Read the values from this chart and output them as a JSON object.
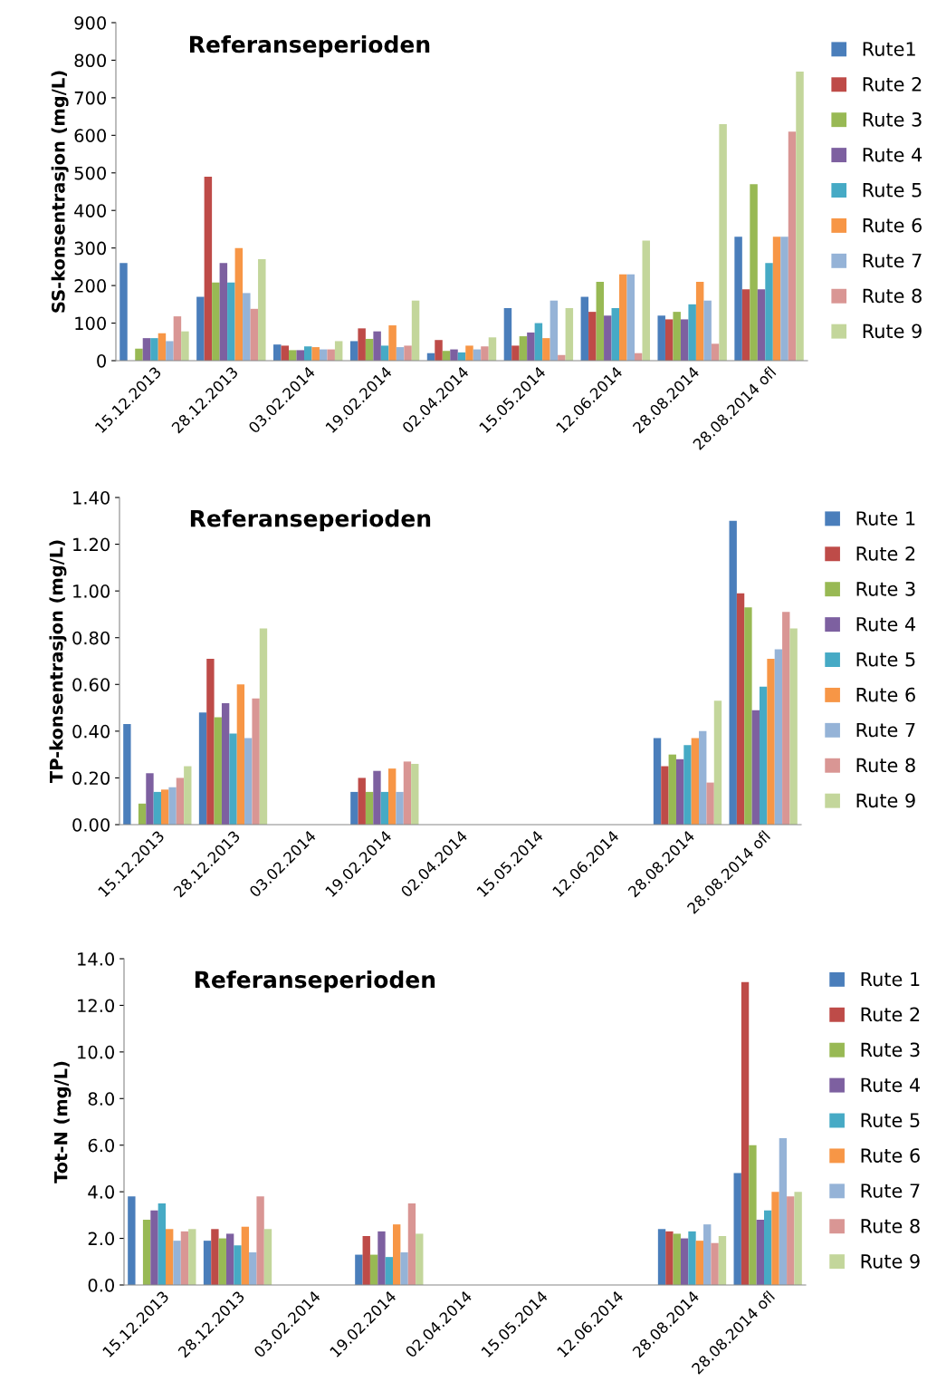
{
  "chart_data": [
    {
      "type": "bar",
      "title": "Referanseperioden",
      "ylabel": "SS-konsentrasjon (mg/L)",
      "categories": [
        "15.12.2013",
        "28.12.2013",
        "03.02.2014",
        "19.02.2014",
        "02.04.2014",
        "15.05.2014",
        "12.06.2014",
        "28.08.2014",
        "28.08.2014 ofl"
      ],
      "ylim": [
        0,
        900
      ],
      "yticks": [
        0,
        100,
        200,
        300,
        400,
        500,
        600,
        700,
        800,
        900
      ],
      "grid": false,
      "legend": "right",
      "series": [
        {
          "name": "Rute1",
          "color": "#4a7ebb",
          "values": [
            260,
            170,
            43,
            52,
            20,
            140,
            170,
            120,
            330
          ]
        },
        {
          "name": "Rute 2",
          "color": "#be4b48",
          "values": [
            null,
            490,
            40,
            86,
            55,
            40,
            130,
            110,
            190
          ]
        },
        {
          "name": "Rute 3",
          "color": "#98b954",
          "values": [
            32,
            208,
            28,
            58,
            26,
            65,
            210,
            130,
            470
          ]
        },
        {
          "name": "Rute 4",
          "color": "#7d60a0",
          "values": [
            60,
            260,
            28,
            78,
            30,
            75,
            120,
            110,
            190
          ]
        },
        {
          "name": "Rute 5",
          "color": "#46aac5",
          "values": [
            60,
            208,
            38,
            40,
            22,
            100,
            140,
            150,
            260
          ]
        },
        {
          "name": "Rute 6",
          "color": "#f79646",
          "values": [
            73,
            300,
            36,
            94,
            40,
            60,
            230,
            210,
            330
          ]
        },
        {
          "name": "Rute 7",
          "color": "#95b3d7",
          "values": [
            52,
            180,
            30,
            36,
            30,
            160,
            230,
            160,
            330
          ]
        },
        {
          "name": "Rute 8",
          "color": "#d99694",
          "values": [
            118,
            138,
            30,
            40,
            38,
            15,
            20,
            45,
            610
          ]
        },
        {
          "name": "Rute 9",
          "color": "#c3d69b",
          "values": [
            78,
            270,
            52,
            160,
            62,
            140,
            320,
            630,
            770
          ]
        }
      ]
    },
    {
      "type": "bar",
      "title": "Referanseperioden",
      "ylabel": "TP-konsentrasjon (mg/L)",
      "categories": [
        "15.12.2013",
        "28.12.2013",
        "03.02.2014",
        "19.02.2014",
        "02.04.2014",
        "15.05.2014",
        "12.06.2014",
        "28.08.2014",
        "28.08.2014 ofl"
      ],
      "ylim": [
        0,
        1.4
      ],
      "yticks": [
        {
          "value": 0,
          "label": "0.00"
        },
        {
          "value": 0.2,
          "label": "0.20"
        },
        {
          "value": 0.4,
          "label": "0.40"
        },
        {
          "value": 0.6,
          "label": "0.60"
        },
        {
          "value": 0.8,
          "label": "0.80"
        },
        {
          "value": 1.0,
          "label": "1.00"
        },
        {
          "value": 1.2,
          "label": "1.20"
        },
        {
          "value": 1.4,
          "label": "1.40"
        }
      ],
      "grid": false,
      "legend": "right",
      "series": [
        {
          "name": "Rute 1",
          "color": "#4a7ebb",
          "values": [
            0.43,
            0.48,
            null,
            0.14,
            null,
            null,
            null,
            0.37,
            1.3
          ]
        },
        {
          "name": "Rute 2",
          "color": "#be4b48",
          "values": [
            null,
            0.71,
            null,
            0.2,
            null,
            null,
            null,
            0.25,
            0.99
          ]
        },
        {
          "name": "Rute 3",
          "color": "#98b954",
          "values": [
            0.09,
            0.46,
            null,
            0.14,
            null,
            null,
            null,
            0.3,
            0.93
          ]
        },
        {
          "name": "Rute 4",
          "color": "#7d60a0",
          "values": [
            0.22,
            0.52,
            null,
            0.23,
            null,
            null,
            null,
            0.28,
            0.49
          ]
        },
        {
          "name": "Rute 5",
          "color": "#46aac5",
          "values": [
            0.14,
            0.39,
            null,
            0.14,
            null,
            null,
            null,
            0.34,
            0.59
          ]
        },
        {
          "name": "Rute 6",
          "color": "#f79646",
          "values": [
            0.15,
            0.6,
            null,
            0.24,
            null,
            null,
            null,
            0.37,
            0.71
          ]
        },
        {
          "name": "Rute 7",
          "color": "#95b3d7",
          "values": [
            0.16,
            0.37,
            null,
            0.14,
            null,
            null,
            null,
            0.4,
            0.75
          ]
        },
        {
          "name": "Rute 8",
          "color": "#d99694",
          "values": [
            0.2,
            0.54,
            null,
            0.27,
            null,
            null,
            null,
            0.18,
            0.91
          ]
        },
        {
          "name": "Rute 9",
          "color": "#c3d69b",
          "values": [
            0.25,
            0.84,
            null,
            0.26,
            null,
            null,
            null,
            0.53,
            0.84
          ]
        }
      ]
    },
    {
      "type": "bar",
      "title": "Referanseperioden",
      "ylabel": "Tot-N (mg/L)",
      "categories": [
        "15.12.2013",
        "28.12.2013",
        "03.02.2014",
        "19.02.2014",
        "02.04.2014",
        "15.05.2014",
        "12.06.2014",
        "28.08.2014",
        "28.08.2014 ofl"
      ],
      "ylim": [
        0,
        14
      ],
      "yticks": [
        {
          "value": 0,
          "label": "0.0"
        },
        {
          "value": 2,
          "label": "2.0"
        },
        {
          "value": 4,
          "label": "4.0"
        },
        {
          "value": 6,
          "label": "6.0"
        },
        {
          "value": 8,
          "label": "8.0"
        },
        {
          "value": 10,
          "label": "10.0"
        },
        {
          "value": 12,
          "label": "12.0"
        },
        {
          "value": 14,
          "label": "14.0"
        }
      ],
      "grid": false,
      "legend": "right",
      "series": [
        {
          "name": "Rute 1",
          "color": "#4a7ebb",
          "values": [
            3.8,
            1.9,
            null,
            1.3,
            null,
            null,
            null,
            2.4,
            4.8
          ]
        },
        {
          "name": "Rute 2",
          "color": "#be4b48",
          "values": [
            null,
            2.4,
            null,
            2.1,
            null,
            null,
            null,
            2.3,
            13.0
          ]
        },
        {
          "name": "Rute 3",
          "color": "#98b954",
          "values": [
            2.8,
            2.0,
            null,
            1.3,
            null,
            null,
            null,
            2.2,
            6.0
          ]
        },
        {
          "name": "Rute 4",
          "color": "#7d60a0",
          "values": [
            3.2,
            2.2,
            null,
            2.3,
            null,
            null,
            null,
            2.0,
            2.8
          ]
        },
        {
          "name": "Rute 5",
          "color": "#46aac5",
          "values": [
            3.5,
            1.7,
            null,
            1.2,
            null,
            null,
            null,
            2.3,
            3.2
          ]
        },
        {
          "name": "Rute 6",
          "color": "#f79646",
          "values": [
            2.4,
            2.5,
            null,
            2.6,
            null,
            null,
            null,
            1.9,
            4.0
          ]
        },
        {
          "name": "Rute 7",
          "color": "#95b3d7",
          "values": [
            1.9,
            1.4,
            null,
            1.4,
            null,
            null,
            null,
            2.6,
            6.3
          ]
        },
        {
          "name": "Rute 8",
          "color": "#d99694",
          "values": [
            2.3,
            3.8,
            null,
            3.5,
            null,
            null,
            null,
            1.8,
            3.8
          ]
        },
        {
          "name": "Rute 9",
          "color": "#c3d69b",
          "values": [
            2.4,
            2.4,
            null,
            2.2,
            null,
            null,
            null,
            2.1,
            4.0
          ]
        }
      ]
    }
  ]
}
